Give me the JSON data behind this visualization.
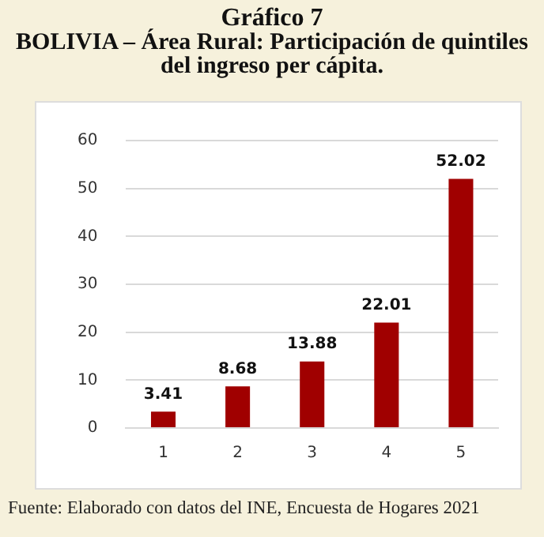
{
  "chart_data": {
    "type": "bar",
    "title": "Gráfico 7",
    "subtitle": "BOLIVIA – Área Rural: Participación de quintiles del ingreso per cápita.",
    "categories": [
      "1",
      "2",
      "3",
      "4",
      "5"
    ],
    "values": [
      3.41,
      8.68,
      13.88,
      22.01,
      52.02
    ],
    "color": "#a00000",
    "ylim": [
      0,
      60
    ],
    "yticks": [
      0,
      10,
      20,
      30,
      40,
      50,
      60
    ],
    "grid": "y",
    "data_labels": true,
    "annotations": [
      "Fuente: Elaborado con datos del INE, Encuesta de Hogares 2021"
    ]
  }
}
